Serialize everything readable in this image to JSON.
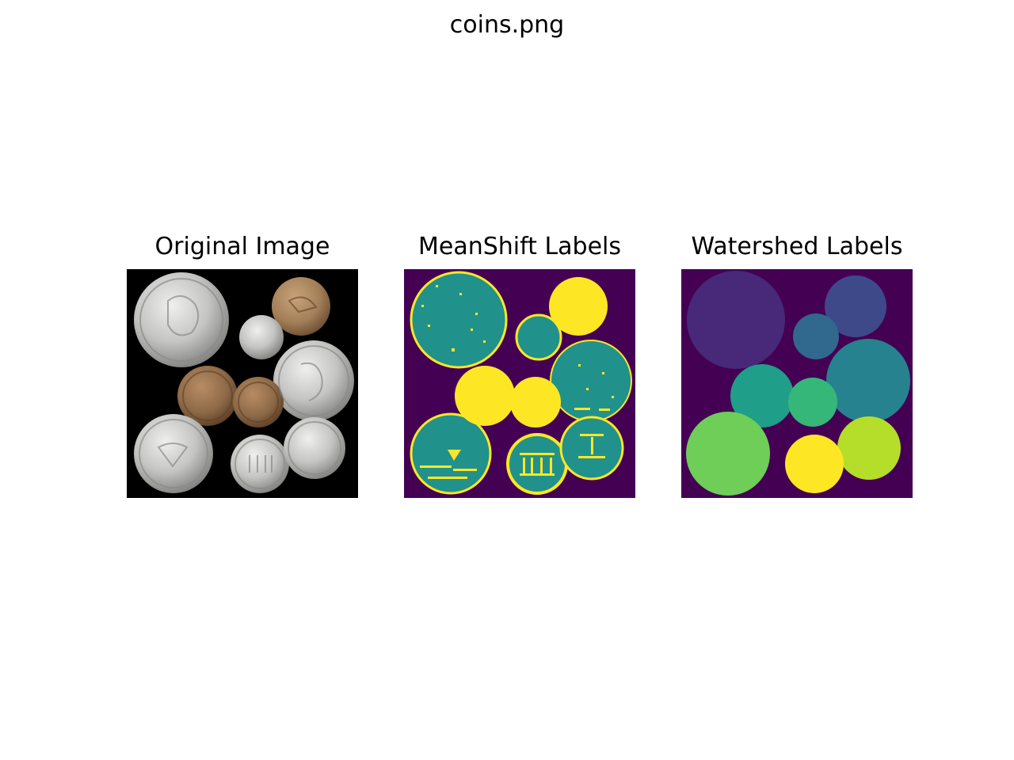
{
  "figure": {
    "title": "coins.png"
  },
  "panels": [
    {
      "title": "Original Image"
    },
    {
      "title": "MeanShift Labels"
    },
    {
      "title": "Watershed Labels"
    }
  ],
  "colors": {
    "figure_background": "#ffffff",
    "original_background": "#000000",
    "silver_coin": "#c4c4c2",
    "silver_coin_edge": "#8a8a88",
    "copper_coin": "#9a7450",
    "copper_coin_edge": "#5e4028",
    "bronze_coin": "#a88458",
    "meanshift_background": "#440154",
    "meanshift_teal": "#21918c",
    "meanshift_yellow": "#fde725",
    "watershed_background": "#440154",
    "watershed_palette": [
      "#482878",
      "#3e4989",
      "#31688e",
      "#26828e",
      "#1f9e89",
      "#35b779",
      "#6ece58",
      "#b5de2b",
      "#fde725"
    ]
  }
}
